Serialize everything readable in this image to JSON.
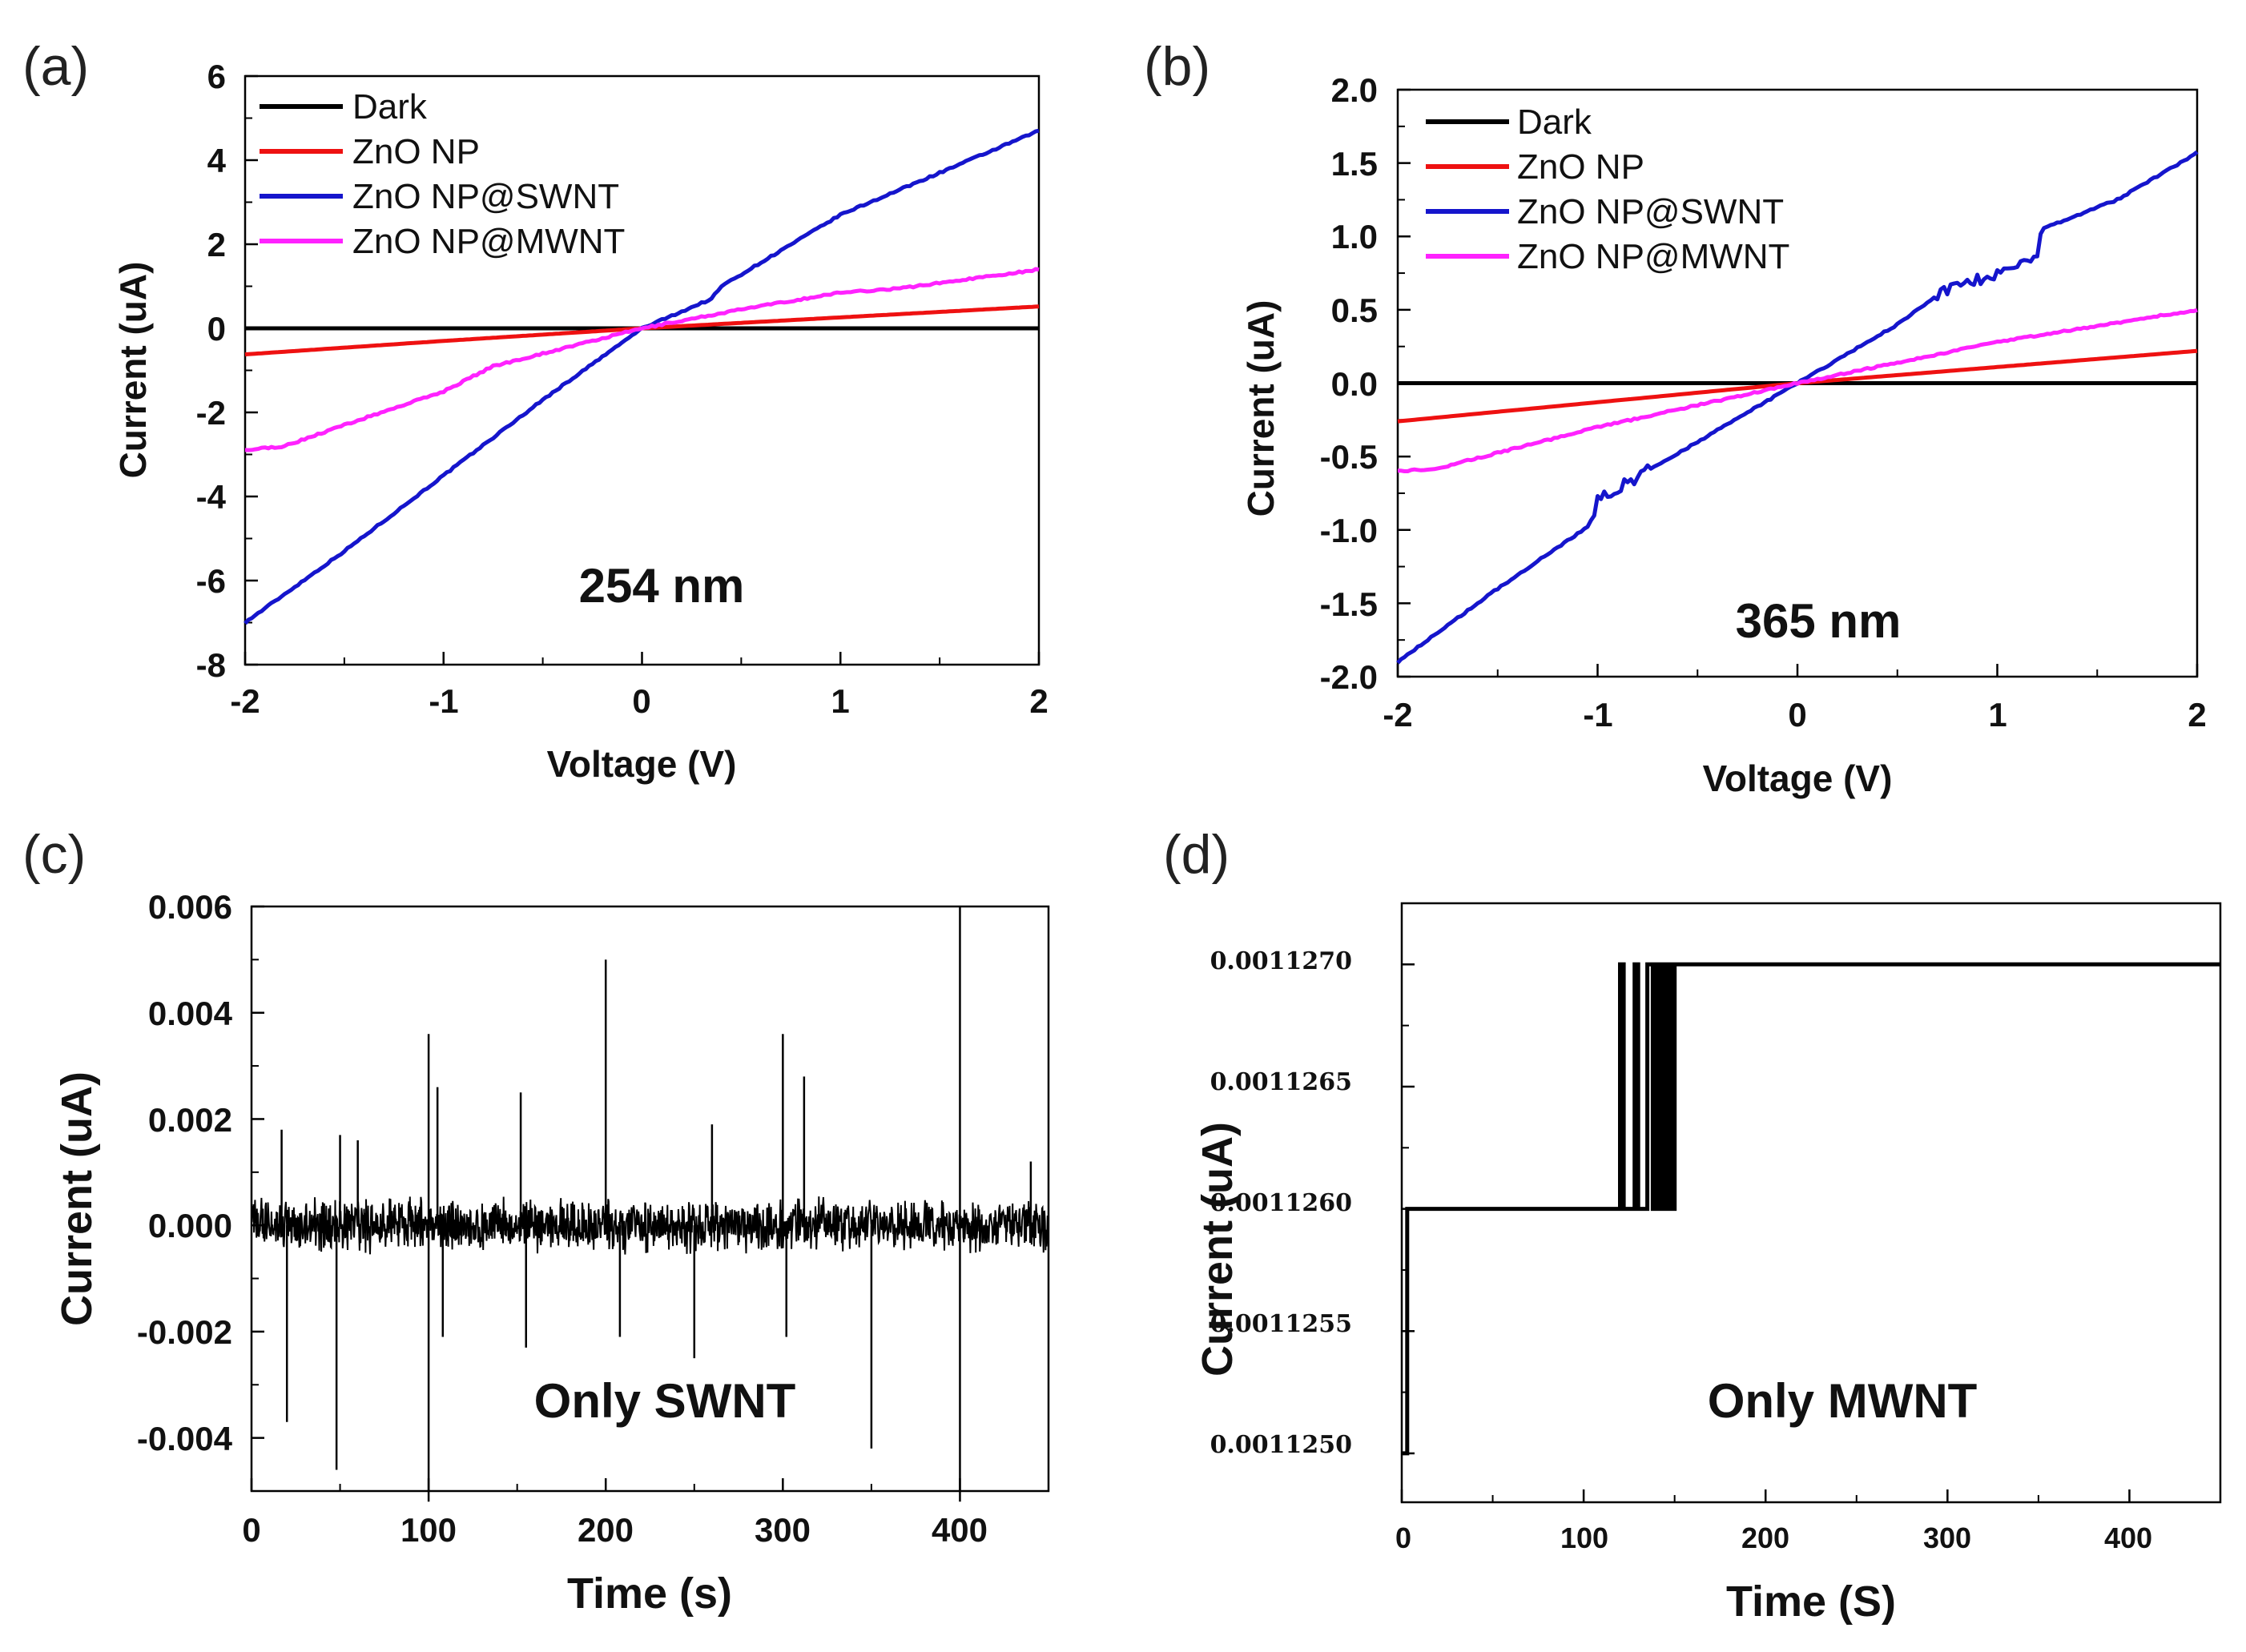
{
  "figure_title": "",
  "chart_data": [
    {
      "id": "a",
      "panel_label": "(a)",
      "type": "line",
      "title": "",
      "annotation": "254 nm",
      "xlabel": "Voltage (V)",
      "ylabel": "Current (uA)",
      "xlim": [
        -2,
        2
      ],
      "ylim": [
        -8,
        6
      ],
      "xticks": [
        "-2",
        "-1",
        "0",
        "1",
        "2"
      ],
      "yticks": [
        "6",
        "4",
        "2",
        "0",
        "-2",
        "-4",
        "-6",
        "-8"
      ],
      "legend_position": "top-left",
      "series": [
        {
          "name": "Dark",
          "color": "#000000",
          "x": [
            -2,
            2
          ],
          "y": [
            0,
            0
          ]
        },
        {
          "name": "ZnO NP",
          "color": "#ee1111",
          "x": [
            -2,
            -1,
            0,
            1,
            2
          ],
          "y": [
            -0.62,
            -0.3,
            0,
            0.26,
            0.52
          ]
        },
        {
          "name": "ZnO NP@SWNT",
          "color": "#1515cc",
          "x": [
            -2,
            -1.5,
            -1,
            -0.5,
            0,
            0.35,
            0.4,
            1,
            1.5,
            2
          ],
          "y": [
            -7.0,
            -5.3,
            -3.5,
            -1.7,
            0,
            0.7,
            1.0,
            2.7,
            3.7,
            4.7
          ]
        },
        {
          "name": "ZnO NP@MWNT",
          "color": "#ff22ff",
          "x": [
            -2,
            -1.8,
            -1.5,
            -1,
            -0.75,
            -0.5,
            0,
            0.5,
            1,
            1.3,
            2
          ],
          "y": [
            -2.9,
            -2.8,
            -2.3,
            -1.5,
            -0.9,
            -0.6,
            0,
            0.45,
            0.85,
            0.95,
            1.4
          ]
        }
      ]
    },
    {
      "id": "b",
      "panel_label": "(b)",
      "type": "line",
      "title": "",
      "annotation": "365 nm",
      "xlabel": "Voltage (V)",
      "ylabel": "Current (uA)",
      "xlim": [
        -2,
        2
      ],
      "ylim": [
        -2.0,
        2.0
      ],
      "xticks": [
        "-2",
        "-1",
        "0",
        "1",
        "2"
      ],
      "yticks": [
        "2.0",
        "1.5",
        "1.0",
        "0.5",
        "0.0",
        "-0.5",
        "-1.0",
        "-1.5",
        "-2.0"
      ],
      "legend_position": "top-left",
      "series": [
        {
          "name": "Dark",
          "color": "#000000",
          "x": [
            -2,
            2
          ],
          "y": [
            0,
            0
          ]
        },
        {
          "name": "ZnO NP",
          "color": "#ee1111",
          "x": [
            -2,
            0,
            2
          ],
          "y": [
            -0.26,
            0,
            0.22
          ]
        },
        {
          "name": "ZnO NP@SWNT",
          "color": "#1515cc",
          "x": [
            -2,
            -1.5,
            -1.02,
            -1.0,
            -0.5,
            0,
            0.5,
            0.7,
            1.2,
            1.22,
            1.6,
            2
          ],
          "y": [
            -1.9,
            -1.4,
            -0.95,
            -0.8,
            -0.4,
            0,
            0.4,
            0.6,
            0.85,
            1.05,
            1.25,
            1.57
          ]
        },
        {
          "name": "ZnO NP@MWNT",
          "color": "#ff22ff",
          "x": [
            -2,
            -1.8,
            -1,
            0,
            1,
            2
          ],
          "y": [
            -0.6,
            -0.58,
            -0.3,
            0,
            0.28,
            0.5
          ]
        }
      ]
    },
    {
      "id": "c",
      "panel_label": "(c)",
      "type": "line",
      "title": "",
      "annotation": "Only SWNT",
      "xlabel": "Time (s)",
      "ylabel": "Current (uA)",
      "xlim": [
        0,
        450
      ],
      "ylim": [
        -0.005,
        0.006
      ],
      "xticks": [
        "0",
        "100",
        "200",
        "300",
        "400"
      ],
      "yticks": [
        "0.006",
        "0.004",
        "0.002",
        "0.000",
        "-0.002",
        "-0.004"
      ],
      "noise_amplitude": 0.0004,
      "spikes": [
        {
          "t": 17,
          "v": 0.0018
        },
        {
          "t": 20,
          "v": -0.0037
        },
        {
          "t": 48,
          "v": -0.0046
        },
        {
          "t": 50,
          "v": 0.0017
        },
        {
          "t": 60,
          "v": 0.0016
        },
        {
          "t": 100,
          "v": 0.0036
        },
        {
          "t": 100,
          "v": -0.0052
        },
        {
          "t": 105,
          "v": 0.0026
        },
        {
          "t": 108,
          "v": -0.0021
        },
        {
          "t": 152,
          "v": 0.0025
        },
        {
          "t": 155,
          "v": -0.0023
        },
        {
          "t": 200,
          "v": 0.005
        },
        {
          "t": 208,
          "v": -0.0021
        },
        {
          "t": 250,
          "v": -0.0025
        },
        {
          "t": 260,
          "v": 0.0019
        },
        {
          "t": 300,
          "v": 0.0036
        },
        {
          "t": 302,
          "v": -0.0021
        },
        {
          "t": 312,
          "v": 0.0028
        },
        {
          "t": 350,
          "v": -0.0042
        },
        {
          "t": 400,
          "v": 0.006
        },
        {
          "t": 400,
          "v": -0.0052
        },
        {
          "t": 440,
          "v": 0.0012
        }
      ]
    },
    {
      "id": "d",
      "panel_label": "(d)",
      "type": "line",
      "title": "",
      "annotation": "Only MWNT",
      "xlabel": "Time (S)",
      "ylabel": "Current (uA)",
      "xlim": [
        0,
        450
      ],
      "ylim": [
        0.0011248,
        0.00112725
      ],
      "xticks": [
        "0",
        "100",
        "200",
        "300",
        "400"
      ],
      "yticks": [
        "0.0011270",
        "0.0011265",
        "0.0011260",
        "0.0011255",
        "0.0011250"
      ],
      "ytick_values": [
        0.001127,
        0.0011265,
        0.001126,
        0.0011255,
        0.001125
      ],
      "series": [
        {
          "name": "Only MWNT",
          "color": "#000000",
          "x": [
            0,
            3,
            3,
            120,
            120,
            122,
            122,
            128,
            128,
            130,
            130,
            135,
            135,
            138,
            138,
            139,
            139,
            140,
            140,
            141,
            141,
            142,
            142,
            143,
            143,
            144,
            144,
            145,
            145,
            146,
            146,
            147,
            147,
            148,
            148,
            150,
            150,
            450
          ],
          "y": [
            0.001125,
            0.001125,
            0.001126,
            0.001126,
            0.001127,
            0.001127,
            0.001126,
            0.001126,
            0.001127,
            0.001127,
            0.001126,
            0.001126,
            0.001127,
            0.001127,
            0.001126,
            0.001126,
            0.001127,
            0.001127,
            0.001126,
            0.001126,
            0.001127,
            0.001127,
            0.001126,
            0.001126,
            0.001127,
            0.001127,
            0.001126,
            0.001126,
            0.001127,
            0.001127,
            0.001126,
            0.001126,
            0.001127,
            0.001127,
            0.001126,
            0.001126,
            0.001127,
            0.001127
          ]
        }
      ]
    }
  ]
}
